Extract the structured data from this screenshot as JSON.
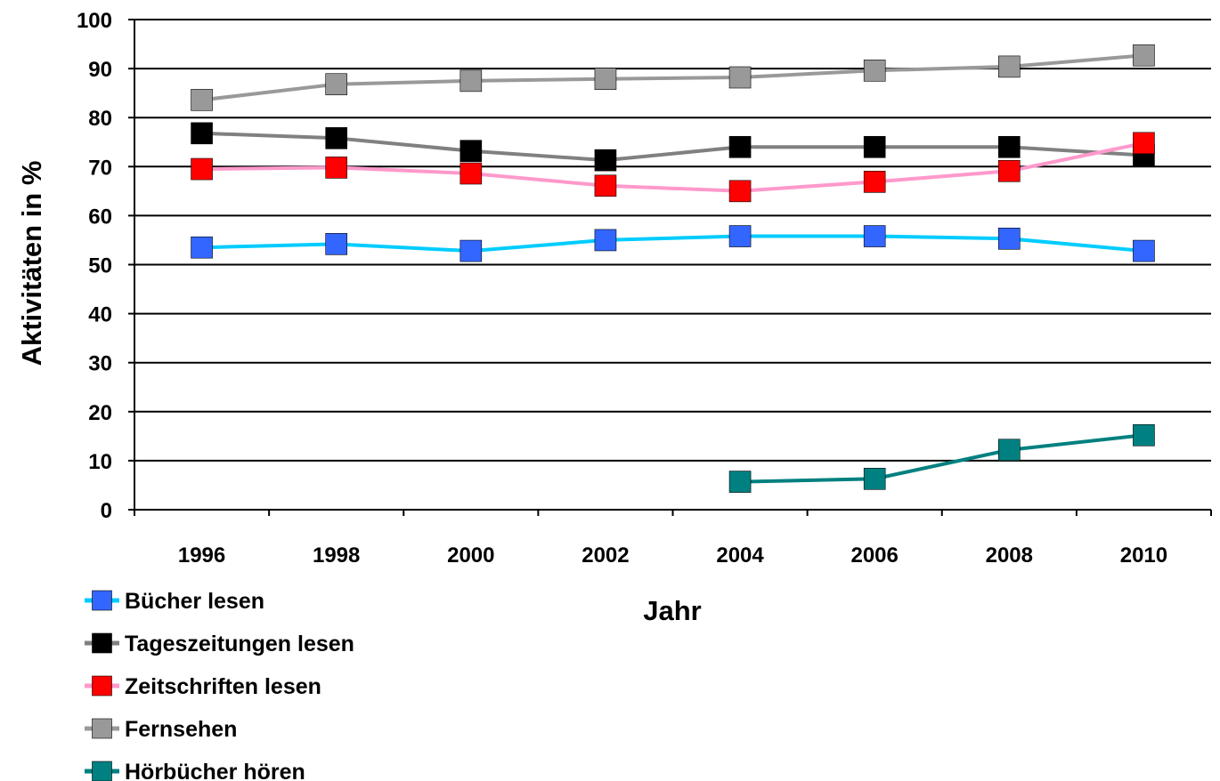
{
  "chart_data": {
    "type": "line",
    "xlabel": "Jahr",
    "ylabel": "Aktivitäten in %",
    "ylim": [
      0,
      100
    ],
    "yticks": [
      0,
      10,
      20,
      30,
      40,
      50,
      60,
      70,
      80,
      90,
      100
    ],
    "categories": [
      "1996",
      "1998",
      "2000",
      "2002",
      "2004",
      "2006",
      "2008",
      "2010"
    ],
    "grid": "horizontal",
    "legend_position": "bottom-left",
    "series": [
      {
        "name": "Bücher lesen",
        "line_color": "#00ccff",
        "marker_color": "#3366ff",
        "values": [
          53.5,
          54.2,
          52.8,
          55.0,
          55.8,
          55.8,
          55.3,
          52.8
        ]
      },
      {
        "name": "Tageszeitungen lesen",
        "line_color": "#808080",
        "marker_color": "#000000",
        "values": [
          76.8,
          75.8,
          73.2,
          71.3,
          74.0,
          74.0,
          74.0,
          72.3
        ]
      },
      {
        "name": "Zeitschriften lesen",
        "line_color": "#ff99cc",
        "marker_color": "#ff0000",
        "values": [
          69.5,
          69.8,
          68.6,
          66.1,
          65.0,
          66.9,
          69.1,
          74.8
        ]
      },
      {
        "name": "Fernsehen",
        "line_color": "#999999",
        "marker_color": "#999999",
        "values": [
          83.6,
          86.8,
          87.5,
          87.9,
          88.2,
          89.6,
          90.4,
          92.7
        ]
      },
      {
        "name": "Hörbücher hören",
        "line_color": "#008080",
        "marker_color": "#008080",
        "values": [
          null,
          null,
          null,
          null,
          5.7,
          6.3,
          12.2,
          15.2
        ]
      }
    ]
  }
}
